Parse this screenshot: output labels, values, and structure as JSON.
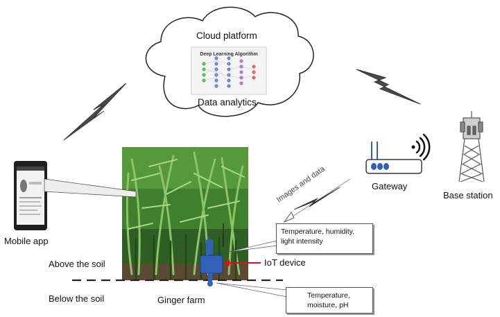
{
  "cloud": {
    "title": "Cloud platform",
    "algorithm_label": "Deep Learning Algorithm",
    "subtitle": "Data analytics"
  },
  "labels": {
    "mobile_app": "Mobile app",
    "above_soil": "Above the soil",
    "below_soil": "Below the soil",
    "ginger_farm": "Ginger farm",
    "iot_device": "IoT device",
    "gateway": "Gateway",
    "base_station": "Base station",
    "images_and_data": "Images and data"
  },
  "callouts": {
    "above": "Temperature, humidity, light intensity",
    "below": "Temperature, moisture, pH"
  },
  "colors": {
    "iot_device": "#2f62b8",
    "iot_arrow": "#e01010",
    "lightning": "#4a4a4a",
    "foliage": "#3d8a2a",
    "gateway_leds": "#2e5fbf"
  },
  "icons": {
    "phone": "smartphone-icon",
    "router": "wifi-router-icon",
    "tower": "cell-tower-icon",
    "wifi": "wifi-signal-icon",
    "bolt": "lightning-bolt-icon"
  }
}
